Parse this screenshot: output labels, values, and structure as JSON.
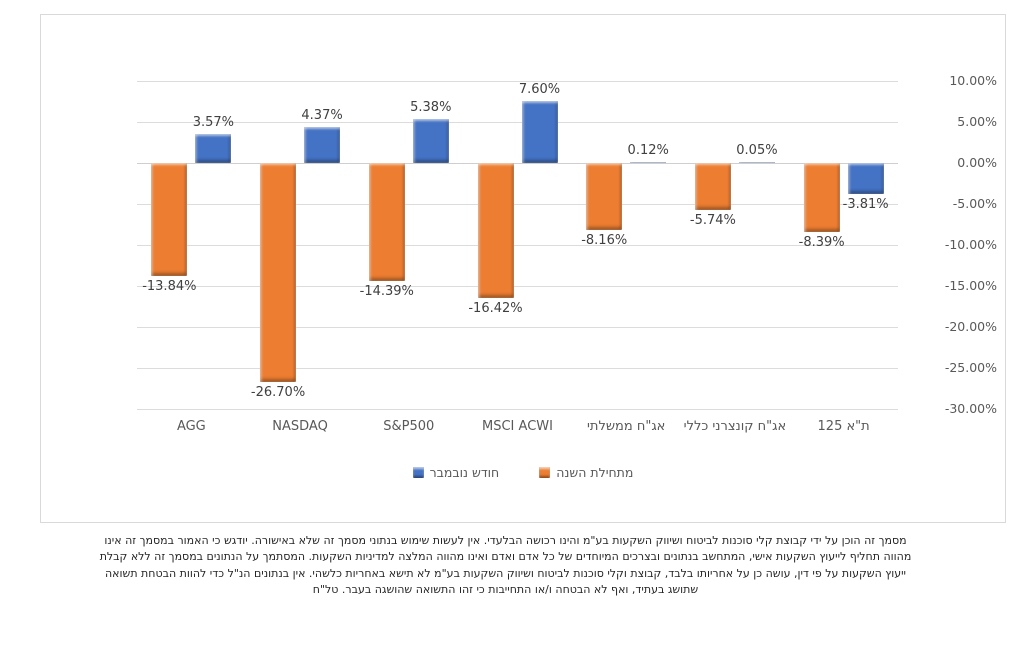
{
  "chart_data": {
    "type": "bar",
    "title": "",
    "categories": [
      "AGG",
      "NASDAQ",
      "S&P500",
      "MSCI ACWI",
      "אג\"ח ממשלתי",
      "אג\"ח קונצרני כללי",
      "ת\"א 125"
    ],
    "series": [
      {
        "key": "ytd",
        "name": "מתחילת השנה",
        "color": "#ED7D31",
        "values": [
          -13.84,
          -26.7,
          -14.39,
          -16.42,
          -8.16,
          -5.74,
          -8.39
        ],
        "labels": [
          "-13.84%",
          "-26.70%",
          "-14.39%",
          "-16.42%",
          "-8.16%",
          "-5.74%",
          "-8.39%"
        ]
      },
      {
        "key": "november",
        "name": "חודש נובמבר",
        "color": "#4472C4",
        "values": [
          3.57,
          4.37,
          5.38,
          7.6,
          0.12,
          0.05,
          -3.81
        ],
        "labels": [
          "3.57%",
          "4.37%",
          "5.38%",
          "7.60%",
          "0.12%",
          "0.05%",
          "-3.81%"
        ]
      }
    ],
    "ylim": [
      -30,
      10
    ],
    "ytick_values": [
      10,
      5,
      0,
      -5,
      -10,
      -15,
      -20,
      -25,
      -30
    ],
    "ytick_labels": [
      "10.00%",
      "5.00%",
      "0.00%",
      "-5.00%",
      "-10.00%",
      "-15.00%",
      "-20.00%",
      "-25.00%",
      "-30.00%"
    ],
    "grid": true,
    "value_axis_side": "right",
    "legend_position": "bottom",
    "xlabel": "",
    "ylabel": ""
  },
  "legend": {
    "items": [
      {
        "label": "חודש נובמבר",
        "color": "#4472C4"
      },
      {
        "label": "מתחילת השנה",
        "color": "#ED7D31"
      }
    ]
  },
  "disclaimer": {
    "lines": [
      "מסמך זה הוכן על ידי קבוצת קלי סוכנות לביטוח ושיווק השקעות בע\"מ והינו רכושה הבלעדי. אין לעשות שימוש בנתוני מסמך זה שלא באישורה. יודגש כי האמור במסמך זה אינו",
      "מהווה תחליף לייעוץ השקעות אישי, המתחשב בנתונים ובצרכים המיוחדים של כל אדם ואדם ואינו מהווה המלצה למדיניות השקעות. המסתמך על הנתונים במסמך זה ללא קבלת",
      "ייעוץ השקעות על פי דין, עושה כן על אחריותו בלבד, קבוצת וקלי סוכנות לביטוח ושיווק השקעות בע\"מ לא תישא באחריות כלשהי. אין בנתונים הנ\"ל כדי להוות הבטחת תשואה",
      "שתושג בעתיד, ואף לא הבטחה ו/או התחייבות כי זהו התשואה שהושגה בעבר. טל\"ח"
    ]
  },
  "colors": {
    "gridline": "#DCDCDC",
    "zero_line": "#CFCFCF",
    "axis_text": "#595959",
    "label_text": "#404040",
    "card_border": "#D9D9D9"
  }
}
